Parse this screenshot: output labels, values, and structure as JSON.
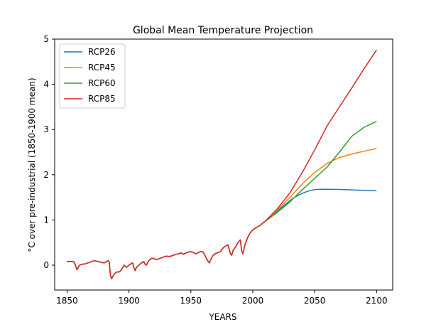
{
  "chart_data": {
    "type": "line",
    "title": "Global Mean Temperature Projection",
    "xlabel": "YEARS",
    "ylabel": "°C over pre-industrial (1850-1900 mean)",
    "xlim": [
      1840,
      2113
    ],
    "ylim": [
      -0.55,
      5.0
    ],
    "xticks": [
      1850,
      1900,
      1950,
      2000,
      2050,
      2100
    ],
    "yticks": [
      0,
      1,
      2,
      3,
      4,
      5
    ],
    "grid": false,
    "legend_position": "upper-left",
    "historical": {
      "x": [
        1850,
        1853,
        1855,
        1856,
        1857,
        1858,
        1860,
        1862,
        1865,
        1868,
        1870,
        1872,
        1875,
        1878,
        1880,
        1882,
        1883,
        1884,
        1885,
        1886,
        1888,
        1890,
        1892,
        1894,
        1896,
        1898,
        1900,
        1901,
        1903,
        1904,
        1905,
        1906,
        1908,
        1910,
        1912,
        1913,
        1914,
        1916,
        1918,
        1920,
        1922,
        1924,
        1926,
        1928,
        1930,
        1932,
        1934,
        1936,
        1938,
        1940,
        1942,
        1944,
        1946,
        1948,
        1950,
        1952,
        1954,
        1956,
        1958,
        1960,
        1962,
        1964,
        1965,
        1966,
        1968,
        1970,
        1972,
        1974,
        1976,
        1978,
        1980,
        1982,
        1983,
        1984,
        1986,
        1988,
        1990,
        1991,
        1992,
        1994,
        1996,
        1998,
        2000,
        2002,
        2004,
        2006,
        2008,
        2010
      ],
      "y": [
        0.08,
        0.08,
        0.08,
        0.05,
        -0.02,
        -0.1,
        0.0,
        0.02,
        0.03,
        0.06,
        0.08,
        0.1,
        0.08,
        0.06,
        0.05,
        0.08,
        0.1,
        0.08,
        -0.22,
        -0.3,
        -0.2,
        -0.15,
        -0.15,
        -0.1,
        0.0,
        -0.05,
        0.0,
        0.02,
        0.05,
        -0.05,
        -0.12,
        -0.05,
        0.0,
        0.05,
        0.08,
        0.02,
        0.0,
        0.1,
        0.15,
        0.15,
        0.12,
        0.14,
        0.16,
        0.18,
        0.2,
        0.19,
        0.2,
        0.22,
        0.24,
        0.25,
        0.27,
        0.24,
        0.27,
        0.29,
        0.3,
        0.28,
        0.25,
        0.28,
        0.3,
        0.29,
        0.18,
        0.08,
        0.05,
        0.12,
        0.22,
        0.26,
        0.28,
        0.3,
        0.38,
        0.42,
        0.45,
        0.25,
        0.22,
        0.32,
        0.4,
        0.5,
        0.56,
        0.32,
        0.25,
        0.48,
        0.62,
        0.72,
        0.78,
        0.82,
        0.85,
        0.88,
        0.93,
        0.97
      ]
    },
    "series": [
      {
        "name": "RCP26",
        "color": "#1f77b4",
        "x": [
          2010,
          2020,
          2030,
          2035,
          2040,
          2045,
          2050,
          2055,
          2060,
          2070,
          2080,
          2090,
          2100
        ],
        "y": [
          0.97,
          1.2,
          1.43,
          1.52,
          1.59,
          1.64,
          1.67,
          1.68,
          1.68,
          1.675,
          1.665,
          1.655,
          1.645
        ]
      },
      {
        "name": "RCP45",
        "color": "#ff7f0e",
        "x": [
          2010,
          2020,
          2030,
          2040,
          2050,
          2060,
          2070,
          2080,
          2090,
          2100
        ],
        "y": [
          0.97,
          1.22,
          1.5,
          1.8,
          2.05,
          2.25,
          2.38,
          2.46,
          2.52,
          2.58
        ]
      },
      {
        "name": "RCP60",
        "color": "#2ca02c",
        "x": [
          2010,
          2020,
          2030,
          2040,
          2050,
          2060,
          2070,
          2080,
          2090,
          2100
        ],
        "y": [
          0.97,
          1.17,
          1.4,
          1.67,
          1.92,
          2.17,
          2.5,
          2.85,
          3.05,
          3.18
        ]
      },
      {
        "name": "RCP85",
        "color": "#d62728",
        "x": [
          2010,
          2020,
          2030,
          2040,
          2050,
          2060,
          2070,
          2080,
          2090,
          2100
        ],
        "y": [
          0.97,
          1.25,
          1.6,
          2.05,
          2.55,
          3.08,
          3.5,
          3.92,
          4.35,
          4.76
        ]
      }
    ]
  }
}
